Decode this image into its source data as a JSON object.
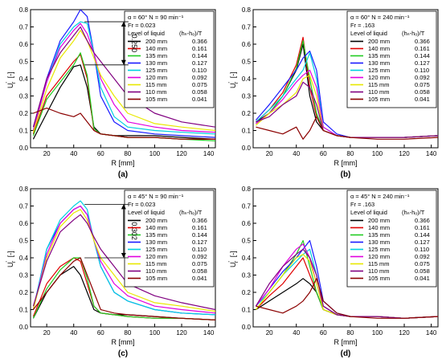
{
  "figure": {
    "common": {
      "xlabel": "R [mm]",
      "ylabel_main": "U",
      "ylabel_sup": "'",
      "ylabel_sub": "r",
      "ylabel_unit": "[-]",
      "legend_heading": "Level of liquid",
      "legend_col_heading": "(hₙ-hₒ)/T",
      "x_ticks": [
        "20",
        "40",
        "60",
        "80",
        "100",
        "120",
        "140"
      ],
      "y_ticks": [
        "0.0",
        "0.1",
        "0.2",
        "0.3",
        "0.4",
        "0.5",
        "0.6",
        "0.7",
        "0.8"
      ]
    },
    "panels": [
      {
        "id": "a",
        "caption": "(a)",
        "legend_line1": "α = 60°  N = 90 min⁻¹",
        "legend_line2": "Fr = 0.023",
        "annotation": "0.250"
      },
      {
        "id": "b",
        "caption": "(b)",
        "legend_line1": "α = 60°  N = 240 min⁻¹",
        "legend_line2": "Fr = .163",
        "annotation": ""
      },
      {
        "id": "c",
        "caption": "(c)",
        "legend_line1": "α = 45°  N = 90 min⁻¹",
        "legend_line2": "Fr = 0.023",
        "annotation": "0.302"
      },
      {
        "id": "d",
        "caption": "(d)",
        "legend_line1": "α = 45°  N = 240 min⁻¹",
        "legend_line2": "Fr = .163",
        "annotation": ""
      }
    ],
    "legend_rows": [
      {
        "label": "200 mm",
        "ratio": "0.366",
        "color": "#000000"
      },
      {
        "label": "140 mm",
        "ratio": "0.161",
        "color": "#e00000"
      },
      {
        "label": "135 mm",
        "ratio": "0.144",
        "color": "#22cc22"
      },
      {
        "label": "130 mm",
        "ratio": "0.127",
        "color": "#1a1aff"
      },
      {
        "label": "125 mm",
        "ratio": "0.110",
        "color": "#00d0e0"
      },
      {
        "label": "120 mm",
        "ratio": "0.092",
        "color": "#e000e0"
      },
      {
        "label": "115 mm",
        "ratio": "0.075",
        "color": "#e8e800"
      },
      {
        "label": "110 mm",
        "ratio": "0.058",
        "color": "#800080"
      },
      {
        "label": "105 mm",
        "ratio": "0.041",
        "color": "#8b0000"
      }
    ]
  },
  "chart_data": [
    {
      "type": "line",
      "panel": "a",
      "xlabel": "R [mm]",
      "ylabel": "U'r [-]",
      "xlim": [
        8,
        145
      ],
      "ylim": [
        0,
        0.8
      ],
      "x": [
        10,
        20,
        30,
        40,
        45,
        50,
        55,
        60,
        70,
        80,
        100,
        120,
        145
      ],
      "series": [
        {
          "name": "200 mm",
          "values": [
            0.05,
            0.2,
            0.35,
            0.47,
            0.48,
            0.35,
            0.12,
            0.08,
            0.07,
            0.07,
            0.07,
            0.06,
            0.05
          ]
        },
        {
          "name": "140 mm",
          "values": [
            0.08,
            0.3,
            0.4,
            0.5,
            0.54,
            0.4,
            0.1,
            0.08,
            0.07,
            0.06,
            0.06,
            0.05,
            0.05
          ]
        },
        {
          "name": "135 mm",
          "values": [
            0.07,
            0.28,
            0.38,
            0.48,
            0.55,
            0.42,
            0.11,
            0.08,
            0.07,
            0.06,
            0.06,
            0.05,
            0.04
          ]
        },
        {
          "name": "130 mm",
          "values": [
            0.1,
            0.4,
            0.62,
            0.73,
            0.8,
            0.76,
            0.55,
            0.3,
            0.15,
            0.1,
            0.08,
            0.07,
            0.06
          ]
        },
        {
          "name": "125 mm",
          "values": [
            0.1,
            0.38,
            0.6,
            0.7,
            0.73,
            0.72,
            0.55,
            0.35,
            0.18,
            0.12,
            0.1,
            0.09,
            0.08
          ]
        },
        {
          "name": "120 mm",
          "values": [
            0.1,
            0.38,
            0.58,
            0.68,
            0.72,
            0.66,
            0.55,
            0.4,
            0.25,
            0.15,
            0.12,
            0.1,
            0.09
          ]
        },
        {
          "name": "115 mm",
          "values": [
            0.09,
            0.34,
            0.52,
            0.62,
            0.68,
            0.62,
            0.52,
            0.42,
            0.3,
            0.2,
            0.14,
            0.12,
            0.1
          ]
        },
        {
          "name": "110 mm",
          "values": [
            0.12,
            0.4,
            0.55,
            0.65,
            0.7,
            0.62,
            0.55,
            0.5,
            0.4,
            0.3,
            0.2,
            0.15,
            0.12
          ]
        },
        {
          "name": "105 mm",
          "values": [
            0.2,
            0.23,
            0.2,
            0.18,
            0.2,
            0.15,
            0.1,
            0.08,
            0.07,
            0.06,
            0.06,
            0.05,
            0.05
          ]
        }
      ]
    },
    {
      "type": "line",
      "panel": "b",
      "xlabel": "R [mm]",
      "ylabel": "U'r [-]",
      "xlim": [
        8,
        145
      ],
      "ylim": [
        0,
        0.8
      ],
      "x": [
        10,
        20,
        30,
        40,
        45,
        50,
        55,
        60,
        70,
        80,
        100,
        120,
        145
      ],
      "series": [
        {
          "name": "200 mm",
          "values": [
            0.15,
            0.2,
            0.3,
            0.45,
            0.6,
            0.3,
            0.15,
            0.1,
            0.07,
            0.06,
            0.06,
            0.06,
            0.07
          ]
        },
        {
          "name": "140 mm",
          "values": [
            0.15,
            0.22,
            0.32,
            0.48,
            0.64,
            0.35,
            0.18,
            0.1,
            0.07,
            0.06,
            0.06,
            0.06,
            0.07
          ]
        },
        {
          "name": "135 mm",
          "values": [
            0.14,
            0.2,
            0.3,
            0.46,
            0.62,
            0.4,
            0.2,
            0.1,
            0.07,
            0.06,
            0.06,
            0.06,
            0.07
          ]
        },
        {
          "name": "130 mm",
          "values": [
            0.16,
            0.25,
            0.35,
            0.45,
            0.52,
            0.56,
            0.45,
            0.15,
            0.08,
            0.06,
            0.06,
            0.06,
            0.07
          ]
        },
        {
          "name": "125 mm",
          "values": [
            0.15,
            0.22,
            0.3,
            0.4,
            0.45,
            0.55,
            0.4,
            0.12,
            0.07,
            0.06,
            0.06,
            0.06,
            0.07
          ]
        },
        {
          "name": "120 mm",
          "values": [
            0.14,
            0.2,
            0.28,
            0.38,
            0.42,
            0.45,
            0.35,
            0.12,
            0.07,
            0.06,
            0.06,
            0.06,
            0.07
          ]
        },
        {
          "name": "115 mm",
          "values": [
            0.13,
            0.2,
            0.25,
            0.32,
            0.4,
            0.42,
            0.3,
            0.1,
            0.07,
            0.06,
            0.06,
            0.06,
            0.07
          ]
        },
        {
          "name": "110 mm",
          "values": [
            0.15,
            0.18,
            0.25,
            0.3,
            0.38,
            0.35,
            0.25,
            0.1,
            0.07,
            0.06,
            0.06,
            0.06,
            0.07
          ]
        },
        {
          "name": "105 mm",
          "values": [
            0.12,
            0.1,
            0.08,
            0.12,
            0.05,
            0.1,
            0.18,
            0.1,
            0.07,
            0.06,
            0.05,
            0.05,
            0.06
          ]
        }
      ]
    },
    {
      "type": "line",
      "panel": "c",
      "xlabel": "R [mm]",
      "ylabel": "U'r [-]",
      "xlim": [
        8,
        145
      ],
      "ylim": [
        0,
        0.8
      ],
      "x": [
        10,
        20,
        30,
        40,
        45,
        50,
        55,
        60,
        70,
        80,
        100,
        120,
        145
      ],
      "series": [
        {
          "name": "200 mm",
          "values": [
            0.05,
            0.2,
            0.3,
            0.35,
            0.3,
            0.2,
            0.1,
            0.08,
            0.07,
            0.07,
            0.06,
            0.05,
            0.04
          ]
        },
        {
          "name": "140 mm",
          "values": [
            0.06,
            0.25,
            0.35,
            0.4,
            0.38,
            0.25,
            0.12,
            0.08,
            0.07,
            0.06,
            0.05,
            0.05,
            0.04
          ]
        },
        {
          "name": "135 mm",
          "values": [
            0.05,
            0.22,
            0.33,
            0.4,
            0.4,
            0.28,
            0.12,
            0.08,
            0.07,
            0.06,
            0.05,
            0.05,
            0.04
          ]
        },
        {
          "name": "130 mm",
          "values": [
            0.1,
            0.45,
            0.6,
            0.68,
            0.7,
            0.65,
            0.5,
            0.35,
            0.2,
            0.15,
            0.1,
            0.08,
            0.07
          ]
        },
        {
          "name": "125 mm",
          "values": [
            0.1,
            0.45,
            0.62,
            0.7,
            0.73,
            0.68,
            0.5,
            0.35,
            0.2,
            0.15,
            0.1,
            0.08,
            0.07
          ]
        },
        {
          "name": "120 mm",
          "values": [
            0.1,
            0.42,
            0.6,
            0.68,
            0.7,
            0.65,
            0.5,
            0.38,
            0.25,
            0.18,
            0.12,
            0.1,
            0.08
          ]
        },
        {
          "name": "115 mm",
          "values": [
            0.1,
            0.4,
            0.58,
            0.66,
            0.68,
            0.62,
            0.5,
            0.4,
            0.3,
            0.2,
            0.14,
            0.12,
            0.09
          ]
        },
        {
          "name": "110 mm",
          "values": [
            0.12,
            0.38,
            0.55,
            0.62,
            0.65,
            0.6,
            0.52,
            0.45,
            0.35,
            0.25,
            0.18,
            0.14,
            0.1
          ]
        },
        {
          "name": "105 mm",
          "values": [
            0.1,
            0.2,
            0.3,
            0.38,
            0.4,
            0.3,
            0.2,
            0.1,
            0.08,
            0.07,
            0.06,
            0.05,
            0.04
          ]
        }
      ]
    },
    {
      "type": "line",
      "panel": "d",
      "xlabel": "R [mm]",
      "ylabel": "U'r [-]",
      "xlim": [
        8,
        145
      ],
      "ylim": [
        0,
        0.8
      ],
      "x": [
        10,
        20,
        30,
        40,
        45,
        50,
        55,
        60,
        70,
        80,
        100,
        120,
        145
      ],
      "series": [
        {
          "name": "200 mm",
          "values": [
            0.1,
            0.15,
            0.2,
            0.25,
            0.28,
            0.25,
            0.2,
            0.1,
            0.07,
            0.06,
            0.06,
            0.05,
            0.06
          ]
        },
        {
          "name": "140 mm",
          "values": [
            0.1,
            0.18,
            0.25,
            0.35,
            0.4,
            0.3,
            0.2,
            0.1,
            0.07,
            0.06,
            0.06,
            0.05,
            0.06
          ]
        },
        {
          "name": "135 mm",
          "values": [
            0.1,
            0.2,
            0.3,
            0.42,
            0.5,
            0.35,
            0.2,
            0.1,
            0.07,
            0.06,
            0.06,
            0.05,
            0.06
          ]
        },
        {
          "name": "130 mm",
          "values": [
            0.12,
            0.22,
            0.32,
            0.4,
            0.45,
            0.5,
            0.35,
            0.15,
            0.08,
            0.06,
            0.06,
            0.05,
            0.06
          ]
        },
        {
          "name": "125 mm",
          "values": [
            0.12,
            0.2,
            0.3,
            0.38,
            0.42,
            0.45,
            0.3,
            0.12,
            0.07,
            0.06,
            0.06,
            0.05,
            0.06
          ]
        },
        {
          "name": "120 mm",
          "values": [
            0.12,
            0.22,
            0.35,
            0.45,
            0.48,
            0.4,
            0.25,
            0.12,
            0.07,
            0.06,
            0.06,
            0.05,
            0.06
          ]
        },
        {
          "name": "115 mm",
          "values": [
            0.1,
            0.2,
            0.3,
            0.4,
            0.42,
            0.38,
            0.25,
            0.1,
            0.07,
            0.06,
            0.06,
            0.05,
            0.06
          ]
        },
        {
          "name": "110 mm",
          "values": [
            0.12,
            0.25,
            0.35,
            0.42,
            0.45,
            0.4,
            0.3,
            0.12,
            0.07,
            0.06,
            0.06,
            0.05,
            0.06
          ]
        },
        {
          "name": "105 mm",
          "values": [
            0.12,
            0.1,
            0.08,
            0.12,
            0.15,
            0.2,
            0.28,
            0.15,
            0.08,
            0.06,
            0.05,
            0.05,
            0.06
          ]
        }
      ]
    }
  ]
}
